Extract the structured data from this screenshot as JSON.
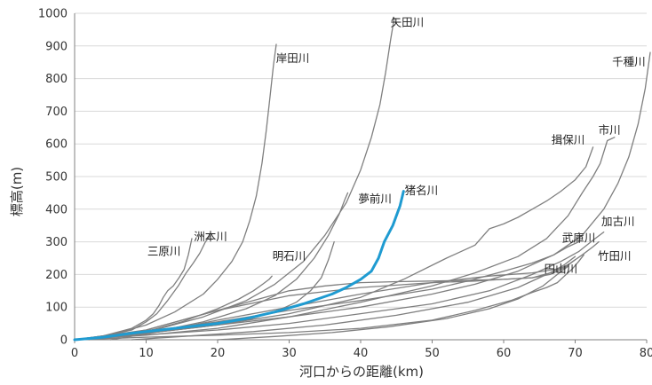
{
  "chart_data": {
    "type": "line",
    "title": "",
    "xlabel": "河口からの距離(km)",
    "ylabel": "標高(m)",
    "xlim": [
      0,
      80
    ],
    "ylim": [
      0,
      1000
    ],
    "xticks": [
      0,
      10,
      20,
      30,
      40,
      50,
      60,
      70,
      80
    ],
    "yticks": [
      0,
      100,
      200,
      300,
      400,
      500,
      600,
      700,
      800,
      900,
      1000
    ],
    "grid": "horizontal",
    "legend": "none",
    "colors": {
      "default": "#7f7f7f",
      "highlight": "#1f9bd1",
      "grid": "#d9d9d9",
      "axis": "#808080"
    },
    "series": [
      {
        "name": "三原川",
        "highlight": false,
        "x": [
          0,
          4,
          8,
          10,
          11,
          11.8,
          12.4,
          13,
          13.8,
          14.6,
          15.3,
          15.9,
          16.4
        ],
        "y": [
          0,
          12,
          35,
          60,
          80,
          105,
          130,
          150,
          165,
          190,
          215,
          260,
          310
        ]
      },
      {
        "name": "洲本川",
        "highlight": false,
        "x": [
          0,
          4,
          8,
          10,
          11.5,
          13,
          14.5,
          15.6,
          16.6,
          17.5,
          18.3,
          19
        ],
        "y": [
          0,
          10,
          30,
          55,
          80,
          120,
          165,
          205,
          235,
          265,
          300,
          320
        ]
      },
      {
        "name": "岸田川",
        "highlight": false,
        "x": [
          0,
          5,
          10,
          14,
          18,
          20,
          22,
          23.5,
          24.5,
          25.4,
          26.2,
          26.8,
          27.3,
          27.8,
          28.2
        ],
        "y": [
          0,
          15,
          45,
          85,
          140,
          185,
          240,
          300,
          365,
          440,
          540,
          640,
          740,
          840,
          905
        ]
      },
      {
        "name": "明石川",
        "highlight": false,
        "x": [
          0,
          5,
          10,
          15,
          20,
          23,
          25,
          26.3,
          27.2,
          27.6
        ],
        "y": [
          0,
          8,
          25,
          55,
          95,
          125,
          150,
          170,
          185,
          195
        ]
      },
      {
        "name": "夢前川",
        "highlight": false,
        "x": [
          0,
          6,
          12,
          18,
          24,
          28,
          31,
          33.5,
          35.5,
          37,
          37.8,
          38.2
        ],
        "y": [
          0,
          10,
          28,
          55,
          95,
          135,
          185,
          250,
          320,
          385,
          430,
          450
        ]
      },
      {
        "name": "矢田川",
        "highlight": false,
        "x": [
          0,
          6,
          12,
          18,
          24,
          28,
          32,
          35,
          38,
          40,
          41.5,
          42.7,
          43.5,
          44.2,
          44.7
        ],
        "y": [
          0,
          12,
          35,
          70,
          120,
          170,
          240,
          320,
          420,
          520,
          620,
          720,
          820,
          920,
          985
        ]
      },
      {
        "name": "猪名川",
        "highlight": true,
        "x": [
          0,
          4,
          8,
          12,
          16,
          20,
          24,
          28,
          32,
          36,
          38,
          40,
          41.5,
          42.5,
          43.3,
          44.5,
          45.5,
          46
        ],
        "y": [
          0,
          8,
          20,
          30,
          40,
          50,
          65,
          85,
          110,
          140,
          160,
          185,
          210,
          250,
          300,
          350,
          410,
          455
        ]
      },
      {
        "name": "揖保川",
        "highlight": false,
        "x": [
          0,
          10,
          20,
          30,
          40,
          46,
          52,
          56,
          58,
          60,
          62,
          64,
          66,
          68,
          70,
          71.5,
          72.5
        ],
        "y": [
          0,
          20,
          45,
          80,
          130,
          185,
          250,
          290,
          340,
          355,
          375,
          400,
          425,
          455,
          490,
          530,
          590
        ]
      },
      {
        "name": "市川",
        "highlight": false,
        "x": [
          0,
          10,
          20,
          30,
          40,
          50,
          56,
          62,
          66,
          69,
          71,
          72.5,
          73.5,
          74.5,
          75.5
        ],
        "y": [
          0,
          14,
          35,
          70,
          115,
          165,
          205,
          255,
          310,
          380,
          450,
          500,
          540,
          610,
          620
        ]
      },
      {
        "name": "千種川",
        "highlight": false,
        "x": [
          0,
          10,
          20,
          30,
          40,
          50,
          56,
          62,
          67,
          71,
          74,
          76,
          77.5,
          78.8,
          79.8,
          80.5
        ],
        "y": [
          0,
          20,
          45,
          70,
          100,
          140,
          170,
          210,
          260,
          320,
          400,
          480,
          560,
          660,
          770,
          880
        ]
      },
      {
        "name": "武庫川",
        "highlight": false,
        "x": [
          0,
          10,
          20,
          30,
          40,
          50,
          55,
          60,
          64,
          67,
          69,
          70.5
        ],
        "y": [
          0,
          25,
          55,
          90,
          120,
          155,
          180,
          210,
          235,
          260,
          285,
          300
        ]
      },
      {
        "name": "加古川",
        "highlight": false,
        "x": [
          0,
          10,
          20,
          30,
          40,
          50,
          58,
          64,
          68,
          70.5,
          72.5,
          74
        ],
        "y": [
          0,
          15,
          30,
          50,
          80,
          110,
          150,
          200,
          240,
          270,
          305,
          330
        ]
      },
      {
        "name": "竹田川",
        "highlight": false,
        "x": [
          8,
          15,
          25,
          35,
          45,
          55,
          62,
          66,
          69,
          71,
          72.5,
          73.3
        ],
        "y": [
          0,
          10,
          25,
          45,
          75,
          115,
          160,
          200,
          230,
          260,
          285,
          300
        ]
      },
      {
        "name": "円山川",
        "highlight": false,
        "x": [
          0,
          10,
          20,
          30,
          40,
          50,
          56,
          61,
          64,
          66,
          67.5,
          68.5,
          69.5,
          70.5,
          71.2
        ],
        "y": [
          0,
          8,
          14,
          22,
          35,
          60,
          90,
          120,
          145,
          160,
          175,
          195,
          215,
          240,
          260
        ]
      },
      {
        "name": "",
        "highlight": false,
        "x": [
          0,
          10,
          20,
          25,
          30,
          35,
          40,
          45,
          50,
          55,
          60,
          64,
          66.5,
          68.5,
          70
        ],
        "y": [
          0,
          30,
          90,
          120,
          150,
          165,
          175,
          178,
          180,
          182,
          185,
          190,
          205,
          230,
          255
        ]
      },
      {
        "name": "",
        "highlight": false,
        "x": [
          2,
          10,
          20,
          30,
          40,
          50,
          56,
          60,
          64,
          66.5,
          68.5,
          70
        ],
        "y": [
          0,
          30,
          90,
          135,
          160,
          175,
          180,
          185,
          190,
          200,
          220,
          245
        ]
      },
      {
        "name": "",
        "highlight": false,
        "x": [
          5,
          12,
          20,
          30,
          40,
          50,
          58,
          64,
          67,
          69
        ],
        "y": [
          0,
          25,
          60,
          100,
          140,
          175,
          195,
          205,
          215,
          225
        ]
      },
      {
        "name": "",
        "highlight": false,
        "x": [
          20,
          28,
          36,
          44,
          52,
          58,
          62,
          65.5,
          67.5,
          69
        ],
        "y": [
          0,
          10,
          22,
          40,
          65,
          95,
          125,
          165,
          200,
          225
        ]
      },
      {
        "name": "",
        "highlight": false,
        "x": [
          0,
          6,
          12,
          18,
          24,
          28,
          31,
          33,
          34.5,
          35.5,
          36.3
        ],
        "y": [
          0,
          10,
          25,
          40,
          60,
          85,
          115,
          150,
          190,
          245,
          300
        ]
      }
    ],
    "labels": [
      {
        "text": "岸田川",
        "x": 30.5,
        "y": 850
      },
      {
        "text": "矢田川",
        "x": 46.5,
        "y": 960
      },
      {
        "text": "千種川",
        "x": 77.5,
        "y": 840
      },
      {
        "text": "市川",
        "x": 74.8,
        "y": 630
      },
      {
        "text": "揖保川",
        "x": 69,
        "y": 600
      },
      {
        "text": "猪名川",
        "x": 48.5,
        "y": 445
      },
      {
        "text": "夢前川",
        "x": 42,
        "y": 420
      },
      {
        "text": "洲本川",
        "x": 19,
        "y": 305
      },
      {
        "text": "三原川",
        "x": 12.5,
        "y": 260
      },
      {
        "text": "明石川",
        "x": 30,
        "y": 245
      },
      {
        "text": "加古川",
        "x": 76,
        "y": 350
      },
      {
        "text": "武庫川",
        "x": 70.5,
        "y": 300
      },
      {
        "text": "竹田川",
        "x": 75.5,
        "y": 245
      },
      {
        "text": "円山川",
        "x": 68,
        "y": 205
      }
    ]
  }
}
